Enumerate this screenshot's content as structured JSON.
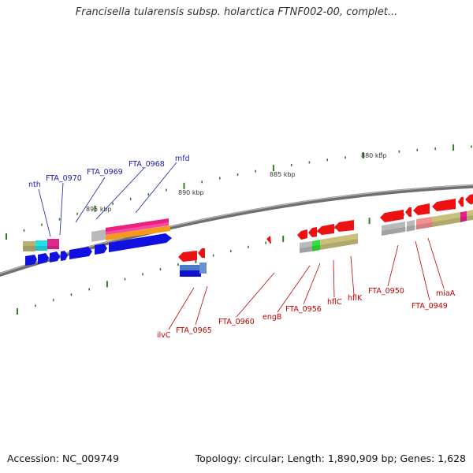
{
  "title": "Francisella tularensis subsp. holarctica FTNF002-00, complet...",
  "footer": {
    "accession": "Accession: NC_009749",
    "summary": "Topology: circular; Length: 1,890,909 bp; Genes: 1,628"
  },
  "scale_labels": [
    "895 kbp",
    "890 kbp",
    "885 kbp",
    "880 kbp"
  ],
  "forward_genes": [
    "nth",
    "FTA_0970",
    "FTA_0969",
    "FTA_0968",
    "mfd"
  ],
  "reverse_genes": [
    "ilvC",
    "FTA_0965",
    "FTA_0960",
    "engB",
    "FTA_0956",
    "hflC",
    "hflK",
    "FTA_0950",
    "FTA_0949",
    "miaA"
  ],
  "colors": {
    "forward_label": "#1a1aa8",
    "reverse_label": "#c00000",
    "forward_gene": "#1010e0",
    "reverse_gene": "#ee1111",
    "backbone": "#7a7a7a",
    "tick": "#2e7d1e"
  }
}
